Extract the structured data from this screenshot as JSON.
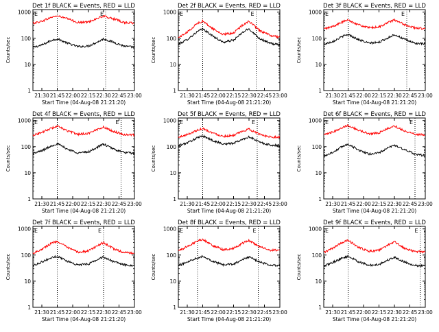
{
  "common": {
    "x_ticks": [
      "21:30",
      "21:45",
      "22:00",
      "22:15",
      "22:30",
      "22:45",
      "23:00"
    ],
    "y_ticks": [
      "1",
      "10",
      "100",
      "1000"
    ],
    "y_label": "Counts/sec",
    "x_label": "Start Time (04-Aug-08 21:21:20)",
    "marker_label": "E",
    "colors": {
      "events": "#000000",
      "lld": "#ff0000"
    }
  },
  "chart_data": [
    {
      "type": "line",
      "title": "Det 1f BLACK = Events, RED = LLD",
      "xlim": [
        "21:21:20",
        "23:00"
      ],
      "ylim": [
        1,
        1000
      ],
      "log_y": true,
      "vlines": [
        "21:45",
        "22:32"
      ],
      "series": [
        {
          "name": "Events",
          "color": "#000000",
          "x": [
            "21:22",
            "21:30",
            "21:40",
            "21:45",
            "21:55",
            "22:05",
            "22:15",
            "22:25",
            "22:30",
            "22:40",
            "22:50",
            "23:00"
          ],
          "y": [
            45,
            55,
            85,
            95,
            65,
            48,
            50,
            75,
            95,
            70,
            50,
            45
          ]
        },
        {
          "name": "LLD",
          "color": "#ff0000",
          "x": [
            "21:22",
            "21:30",
            "21:40",
            "21:45",
            "21:55",
            "22:05",
            "22:15",
            "22:25",
            "22:30",
            "22:40",
            "22:50",
            "23:00"
          ],
          "y": [
            380,
            450,
            650,
            720,
            560,
            400,
            420,
            600,
            700,
            550,
            400,
            380
          ]
        }
      ]
    },
    {
      "type": "line",
      "title": "Det 2f BLACK = Events, RED = LLD",
      "xlim": [
        "21:21:20",
        "23:00"
      ],
      "ylim": [
        1,
        1000
      ],
      "log_y": true,
      "vlines": [
        "21:45",
        "22:37"
      ],
      "series": [
        {
          "name": "Events",
          "color": "#000000",
          "x": [
            "21:22",
            "21:30",
            "21:40",
            "21:45",
            "21:55",
            "22:05",
            "22:15",
            "22:25",
            "22:30",
            "22:40",
            "22:50",
            "23:00"
          ],
          "y": [
            60,
            90,
            180,
            230,
            120,
            70,
            85,
            180,
            230,
            100,
            65,
            55
          ]
        },
        {
          "name": "LLD",
          "color": "#ff0000",
          "x": [
            "21:22",
            "21:30",
            "21:40",
            "21:45",
            "21:55",
            "22:05",
            "22:15",
            "22:25",
            "22:30",
            "22:40",
            "22:50",
            "23:00"
          ],
          "y": [
            110,
            170,
            380,
            450,
            230,
            140,
            160,
            350,
            450,
            200,
            130,
            110
          ]
        }
      ]
    },
    {
      "type": "line",
      "title": "Det 3f BLACK = Events, RED = LLD",
      "xlim": [
        "21:21:20",
        "23:00"
      ],
      "ylim": [
        1,
        1000
      ],
      "log_y": true,
      "vlines": [
        "21:45",
        "22:42"
      ],
      "series": [
        {
          "name": "Events",
          "color": "#000000",
          "x": [
            "21:22",
            "21:30",
            "21:40",
            "21:45",
            "21:55",
            "22:05",
            "22:15",
            "22:25",
            "22:30",
            "22:40",
            "22:50",
            "23:00"
          ],
          "y": [
            60,
            75,
            120,
            140,
            90,
            65,
            70,
            110,
            140,
            90,
            65,
            60
          ]
        },
        {
          "name": "LLD",
          "color": "#ff0000",
          "x": [
            "21:22",
            "21:30",
            "21:40",
            "21:45",
            "21:55",
            "22:05",
            "22:15",
            "22:25",
            "22:30",
            "22:40",
            "22:50",
            "23:00"
          ],
          "y": [
            230,
            280,
            430,
            500,
            330,
            250,
            270,
            420,
            500,
            330,
            250,
            230
          ]
        }
      ]
    },
    {
      "type": "line",
      "title": "Det 4f BLACK = Events, RED = LLD",
      "xlim": [
        "21:21:20",
        "23:00"
      ],
      "ylim": [
        1,
        1000
      ],
      "log_y": true,
      "vlines": [
        "21:45",
        "22:47"
      ],
      "series": [
        {
          "name": "Events",
          "color": "#000000",
          "x": [
            "21:22",
            "21:30",
            "21:40",
            "21:45",
            "21:55",
            "22:05",
            "22:15",
            "22:25",
            "22:30",
            "22:40",
            "22:50",
            "23:00"
          ],
          "y": [
            55,
            70,
            110,
            130,
            80,
            58,
            62,
            100,
            125,
            80,
            60,
            55
          ]
        },
        {
          "name": "LLD",
          "color": "#ff0000",
          "x": [
            "21:22",
            "21:30",
            "21:40",
            "21:45",
            "21:55",
            "22:05",
            "22:15",
            "22:25",
            "22:30",
            "22:40",
            "22:50",
            "23:00"
          ],
          "y": [
            280,
            350,
            520,
            600,
            400,
            300,
            320,
            480,
            560,
            380,
            290,
            280
          ]
        }
      ]
    },
    {
      "type": "line",
      "title": "Det 5f BLACK = Events, RED = LLD",
      "xlim": [
        "21:21:20",
        "23:00"
      ],
      "ylim": [
        1,
        1000
      ],
      "log_y": true,
      "vlines": [
        "21:45",
        "22:38"
      ],
      "series": [
        {
          "name": "Events",
          "color": "#000000",
          "x": [
            "21:22",
            "21:30",
            "21:40",
            "21:45",
            "21:55",
            "22:05",
            "22:15",
            "22:25",
            "22:30",
            "22:40",
            "22:50",
            "23:00"
          ],
          "y": [
            110,
            140,
            220,
            260,
            170,
            125,
            135,
            200,
            240,
            150,
            115,
            110
          ]
        },
        {
          "name": "LLD",
          "color": "#ff0000",
          "x": [
            "21:22",
            "21:30",
            "21:40",
            "21:45",
            "21:55",
            "22:05",
            "22:15",
            "22:25",
            "22:30",
            "22:40",
            "22:50",
            "23:00"
          ],
          "y": [
            230,
            290,
            430,
            500,
            330,
            250,
            270,
            400,
            470,
            300,
            240,
            230
          ]
        }
      ]
    },
    {
      "type": "line",
      "title": "Det 6f BLACK = Events, RED = LLD",
      "xlim": [
        "21:21:20",
        "23:00"
      ],
      "ylim": [
        1,
        1000
      ],
      "log_y": true,
      "vlines": [
        "21:45",
        "22:50"
      ],
      "series": [
        {
          "name": "Events",
          "color": "#000000",
          "x": [
            "21:22",
            "21:30",
            "21:40",
            "21:45",
            "21:55",
            "22:05",
            "22:15",
            "22:25",
            "22:30",
            "22:40",
            "22:50",
            "23:00"
          ],
          "y": [
            45,
            60,
            105,
            125,
            75,
            52,
            58,
            95,
            115,
            75,
            52,
            45
          ]
        },
        {
          "name": "LLD",
          "color": "#ff0000",
          "x": [
            "21:22",
            "21:30",
            "21:40",
            "21:45",
            "21:55",
            "22:05",
            "22:15",
            "22:25",
            "22:30",
            "22:40",
            "22:50",
            "23:00"
          ],
          "y": [
            280,
            360,
            560,
            650,
            430,
            310,
            340,
            520,
            620,
            400,
            300,
            280
          ]
        }
      ]
    },
    {
      "type": "line",
      "title": "Det 7f BLACK = Events, RED = LLD",
      "xlim": [
        "21:21:20",
        "23:00"
      ],
      "ylim": [
        1,
        1000
      ],
      "log_y": true,
      "vlines": [
        "21:45",
        "22:30"
      ],
      "series": [
        {
          "name": "Events",
          "color": "#000000",
          "x": [
            "21:22",
            "21:30",
            "21:40",
            "21:45",
            "21:55",
            "22:05",
            "22:15",
            "22:25",
            "22:30",
            "22:40",
            "22:50",
            "23:00"
          ],
          "y": [
            40,
            55,
            80,
            90,
            58,
            42,
            45,
            70,
            85,
            55,
            42,
            40
          ]
        },
        {
          "name": "LLD",
          "color": "#ff0000",
          "x": [
            "21:22",
            "21:30",
            "21:40",
            "21:45",
            "21:55",
            "22:05",
            "22:15",
            "22:25",
            "22:30",
            "22:40",
            "22:50",
            "23:00"
          ],
          "y": [
            120,
            170,
            290,
            340,
            190,
            130,
            140,
            240,
            300,
            170,
            125,
            115
          ]
        }
      ]
    },
    {
      "type": "line",
      "title": "Det 8f BLACK = Events, RED = LLD",
      "xlim": [
        "21:21:20",
        "23:00"
      ],
      "ylim": [
        1,
        1000
      ],
      "log_y": true,
      "vlines": [
        "21:40",
        "22:39"
      ],
      "series": [
        {
          "name": "Events",
          "color": "#000000",
          "x": [
            "21:22",
            "21:30",
            "21:40",
            "21:45",
            "21:55",
            "22:05",
            "22:15",
            "22:25",
            "22:30",
            "22:40",
            "22:50",
            "23:00"
          ],
          "y": [
            40,
            55,
            80,
            90,
            58,
            42,
            45,
            70,
            85,
            55,
            42,
            40
          ]
        },
        {
          "name": "LLD",
          "color": "#ff0000",
          "x": [
            "21:22",
            "21:30",
            "21:40",
            "21:45",
            "21:55",
            "22:05",
            "22:15",
            "22:25",
            "22:30",
            "22:40",
            "22:50",
            "23:00"
          ],
          "y": [
            150,
            210,
            350,
            400,
            230,
            160,
            180,
            300,
            360,
            210,
            155,
            150
          ]
        }
      ]
    },
    {
      "type": "line",
      "title": "Det 9f BLACK = Events, RED = LLD",
      "xlim": [
        "21:21:20",
        "23:00"
      ],
      "ylim": [
        1,
        1000
      ],
      "log_y": true,
      "vlines": [
        "21:45",
        "22:55"
      ],
      "series": [
        {
          "name": "Events",
          "color": "#000000",
          "x": [
            "21:22",
            "21:30",
            "21:40",
            "21:45",
            "21:55",
            "22:05",
            "22:15",
            "22:25",
            "22:30",
            "22:40",
            "22:50",
            "23:00"
          ],
          "y": [
            38,
            52,
            78,
            90,
            56,
            40,
            44,
            68,
            82,
            54,
            40,
            38
          ]
        },
        {
          "name": "LLD",
          "color": "#ff0000",
          "x": [
            "21:22",
            "21:30",
            "21:40",
            "21:45",
            "21:55",
            "22:05",
            "22:15",
            "22:25",
            "22:30",
            "22:40",
            "22:50",
            "23:00"
          ],
          "y": [
            130,
            180,
            310,
            360,
            200,
            140,
            150,
            260,
            320,
            180,
            135,
            130
          ]
        }
      ]
    }
  ]
}
